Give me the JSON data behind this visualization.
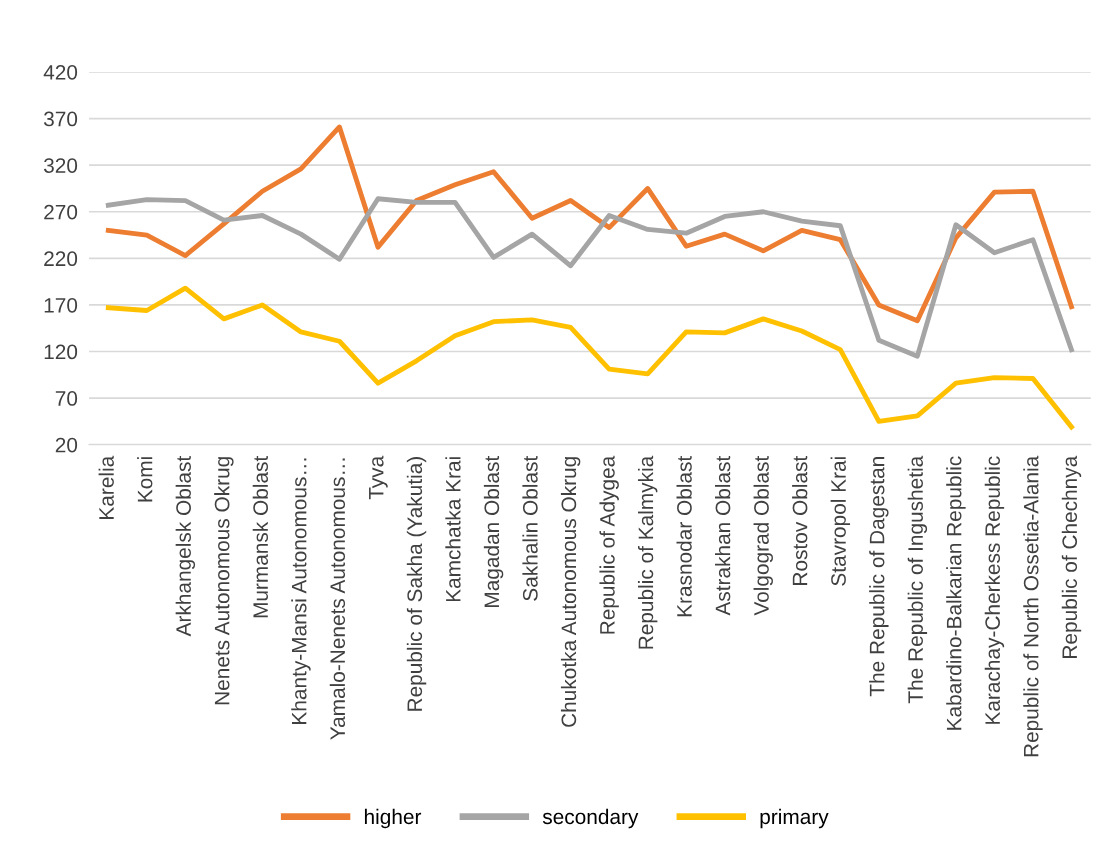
{
  "chart_data": {
    "type": "line",
    "categories": [
      "Karelia",
      "Komi",
      "Arkhangelsk Oblast",
      "Nenets Autonomous Okrug",
      "Murmansk Oblast",
      "Khanty-Mansi Autonomous…",
      "Yamalo-Nenets Autonomous…",
      "Tyva",
      "Republic of Sakha (Yakutia)",
      "Kamchatka Krai",
      "Magadan Oblast",
      "Sakhalin Oblast",
      "Chukotka Autonomous Okrug",
      "Republic of Adygea",
      "Republic of Kalmykia",
      "Krasnodar Oblast",
      "Astrakhan Oblast",
      "Volgograd Oblast",
      "Rostov Oblast",
      "Stavropol Krai",
      "The Republic of Dagestan",
      "The Republic of Ingushetia",
      "Kabardino-Balkarian Republic",
      "Karachay-Cherkess Republic",
      "Republic of North Ossetia-Alania",
      "Republic of Chechnya"
    ],
    "series": [
      {
        "name": "higher",
        "color": "#ed7d31",
        "values": [
          250,
          245,
          223,
          257,
          292,
          316,
          361,
          232,
          282,
          299,
          313,
          263,
          282,
          253,
          295,
          233,
          246,
          228,
          250,
          240,
          170,
          153,
          242,
          291,
          292,
          168
        ]
      },
      {
        "name": "secondary",
        "color": "#a5a5a5",
        "values": [
          277,
          283,
          282,
          261,
          266,
          246,
          219,
          284,
          280,
          280,
          221,
          246,
          212,
          266,
          251,
          247,
          265,
          270,
          260,
          255,
          132,
          115,
          256,
          226,
          240,
          122
        ]
      },
      {
        "name": "primary",
        "color": "#ffc000",
        "values": [
          167,
          164,
          188,
          155,
          170,
          141,
          131,
          86,
          110,
          137,
          152,
          154,
          146,
          101,
          96,
          141,
          140,
          155,
          142,
          122,
          45,
          51,
          86,
          92,
          91,
          39
        ]
      }
    ],
    "ylim": [
      20,
      420
    ],
    "yticks": [
      20,
      70,
      120,
      170,
      220,
      270,
      320,
      370,
      420
    ],
    "grid": "y",
    "legend": "bottom",
    "marker": "none",
    "line_style": "solid"
  }
}
